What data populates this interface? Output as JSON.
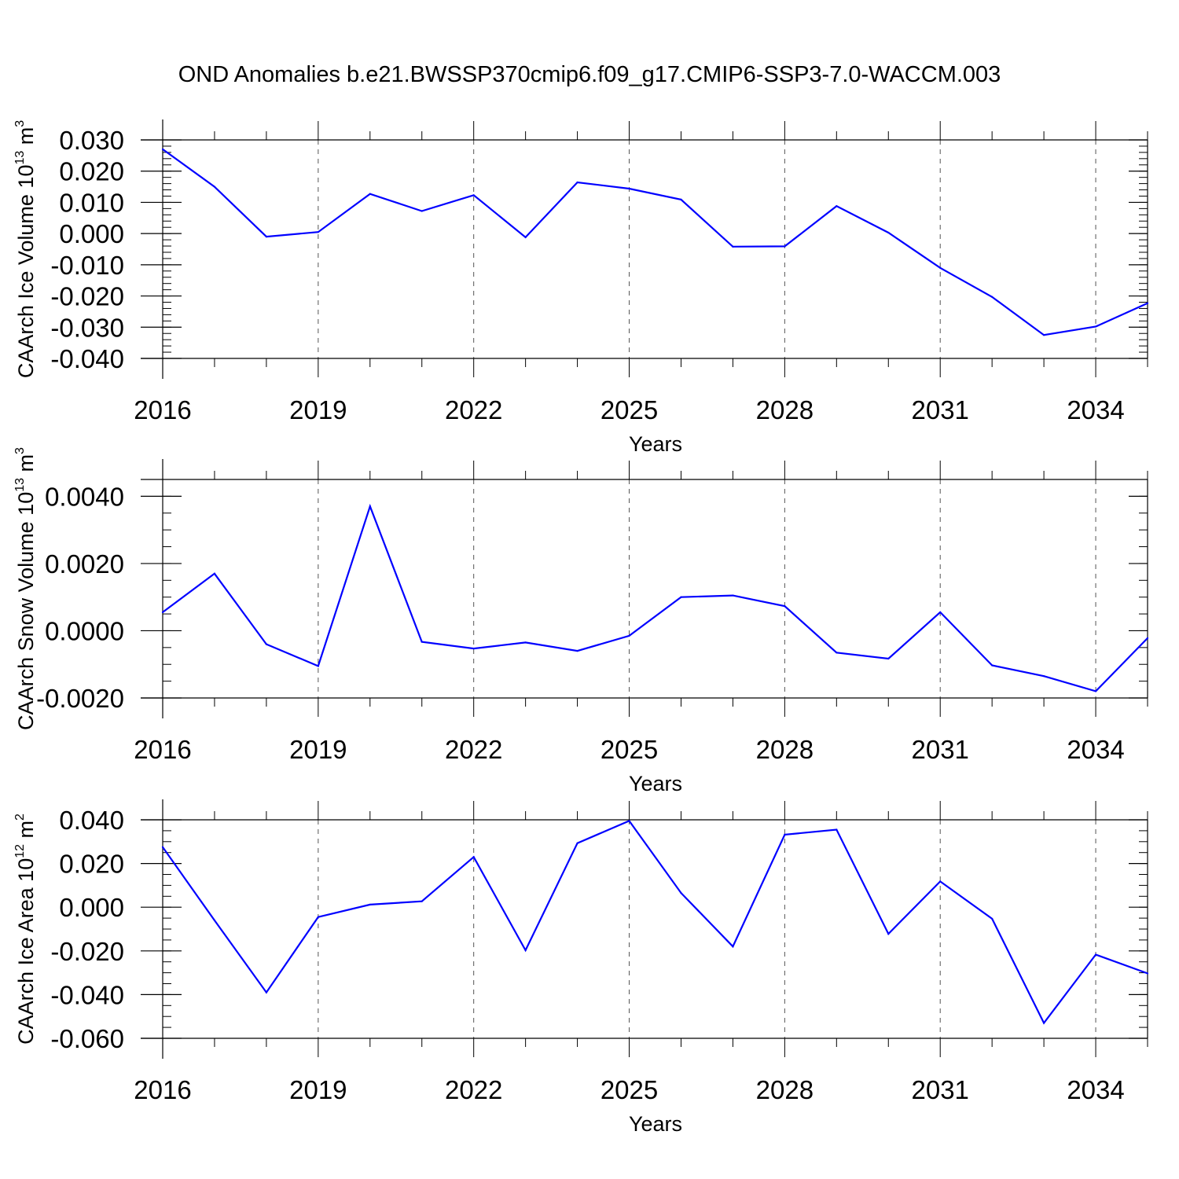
{
  "title": "OND Anomalies b.e21.BWSSP370cmip6.f09_g17.CMIP6-SSP3-7.0-WACCM.003",
  "chart_data": [
    {
      "type": "line",
      "x": [
        2016,
        2017,
        2018,
        2019,
        2020,
        2021,
        2022,
        2023,
        2024,
        2025,
        2026,
        2027,
        2028,
        2029,
        2030,
        2031,
        2032,
        2033,
        2034,
        2035
      ],
      "series": [
        {
          "color": "#0000ff",
          "values": [
            0.027,
            0.015,
            -0.001,
            0.0005,
            0.0127,
            0.0072,
            0.0123,
            -0.0012,
            0.0164,
            0.0144,
            0.0109,
            -0.0042,
            -0.0041,
            0.0088,
            0.0003,
            -0.011,
            -0.0203,
            -0.0325,
            -0.0298,
            -0.0223
          ]
        }
      ],
      "ylabel": {
        "main": "CAArch Ice Volume 10",
        "sup": "13",
        "unit": " m",
        "unit_sup": "3"
      },
      "xlabel": "Years",
      "ylim": [
        -0.04,
        0.03
      ],
      "xlim": [
        2016,
        2035
      ],
      "yticks": [
        -0.04,
        -0.03,
        -0.02,
        -0.01,
        0.0,
        0.01,
        0.02,
        0.03
      ],
      "ytick_labels": [
        "-0.040",
        "-0.030",
        "-0.020",
        "-0.010",
        "0.000",
        "0.010",
        "0.020",
        "0.030"
      ],
      "y_minor_step": 0.002,
      "xticks": [
        2016,
        2019,
        2022,
        2025,
        2028,
        2031,
        2034
      ],
      "xtick_labels": [
        "2016",
        "2019",
        "2022",
        "2025",
        "2028",
        "2031",
        "2034"
      ],
      "grid": "vertical dashed at major x ticks"
    },
    {
      "type": "line",
      "x": [
        2016,
        2017,
        2018,
        2019,
        2020,
        2021,
        2022,
        2023,
        2024,
        2025,
        2026,
        2027,
        2028,
        2029,
        2030,
        2031,
        2032,
        2033,
        2034,
        2035
      ],
      "series": [
        {
          "color": "#0000ff",
          "values": [
            0.00055,
            0.0017,
            -0.0004,
            -0.00105,
            0.0037,
            -0.00033,
            -0.00053,
            -0.00035,
            -0.0006,
            -0.00015,
            0.001,
            0.00105,
            0.00073,
            -0.00065,
            -0.00083,
            0.00055,
            -0.00103,
            -0.00135,
            -0.0018,
            -0.00022
          ]
        }
      ],
      "ylabel": {
        "main": "CAArch Snow Volume 10",
        "sup": "13",
        "unit": " m",
        "unit_sup": "3"
      },
      "xlabel": "Years",
      "ylim": [
        -0.002,
        0.0045
      ],
      "xlim": [
        2016,
        2035
      ],
      "yticks": [
        -0.002,
        0.0,
        0.002,
        0.004
      ],
      "ytick_labels": [
        "-0.0020",
        "0.0000",
        "0.0020",
        "0.0040"
      ],
      "y_minor_step": 0.0005,
      "xticks": [
        2016,
        2019,
        2022,
        2025,
        2028,
        2031,
        2034
      ],
      "xtick_labels": [
        "2016",
        "2019",
        "2022",
        "2025",
        "2028",
        "2031",
        "2034"
      ],
      "grid": "vertical dashed at major x ticks"
    },
    {
      "type": "line",
      "x": [
        2016,
        2017,
        2018,
        2019,
        2020,
        2021,
        2022,
        2023,
        2024,
        2025,
        2026,
        2027,
        2028,
        2029,
        2030,
        2031,
        2032,
        2033,
        2034,
        2035
      ],
      "series": [
        {
          "color": "#0000ff",
          "values": [
            0.0275,
            -0.006,
            -0.039,
            -0.0045,
            0.0012,
            0.0027,
            0.023,
            -0.0197,
            0.0293,
            0.0395,
            0.0065,
            -0.018,
            0.0332,
            0.0355,
            -0.0122,
            0.0118,
            -0.0053,
            -0.053,
            -0.0217,
            -0.0303
          ]
        }
      ],
      "ylabel": {
        "main": "CAArch Ice Area 10",
        "sup": "12",
        "unit": " m",
        "unit_sup": "2"
      },
      "xlabel": "Years",
      "ylim": [
        -0.06,
        0.04
      ],
      "xlim": [
        2016,
        2035
      ],
      "yticks": [
        -0.06,
        -0.04,
        -0.02,
        0.0,
        0.02,
        0.04
      ],
      "ytick_labels": [
        "-0.060",
        "-0.040",
        "-0.020",
        "0.000",
        "0.020",
        "0.040"
      ],
      "y_minor_step": 0.005,
      "xticks": [
        2016,
        2019,
        2022,
        2025,
        2028,
        2031,
        2034
      ],
      "xtick_labels": [
        "2016",
        "2019",
        "2022",
        "2025",
        "2028",
        "2031",
        "2034"
      ],
      "grid": "vertical dashed at major x ticks"
    }
  ]
}
